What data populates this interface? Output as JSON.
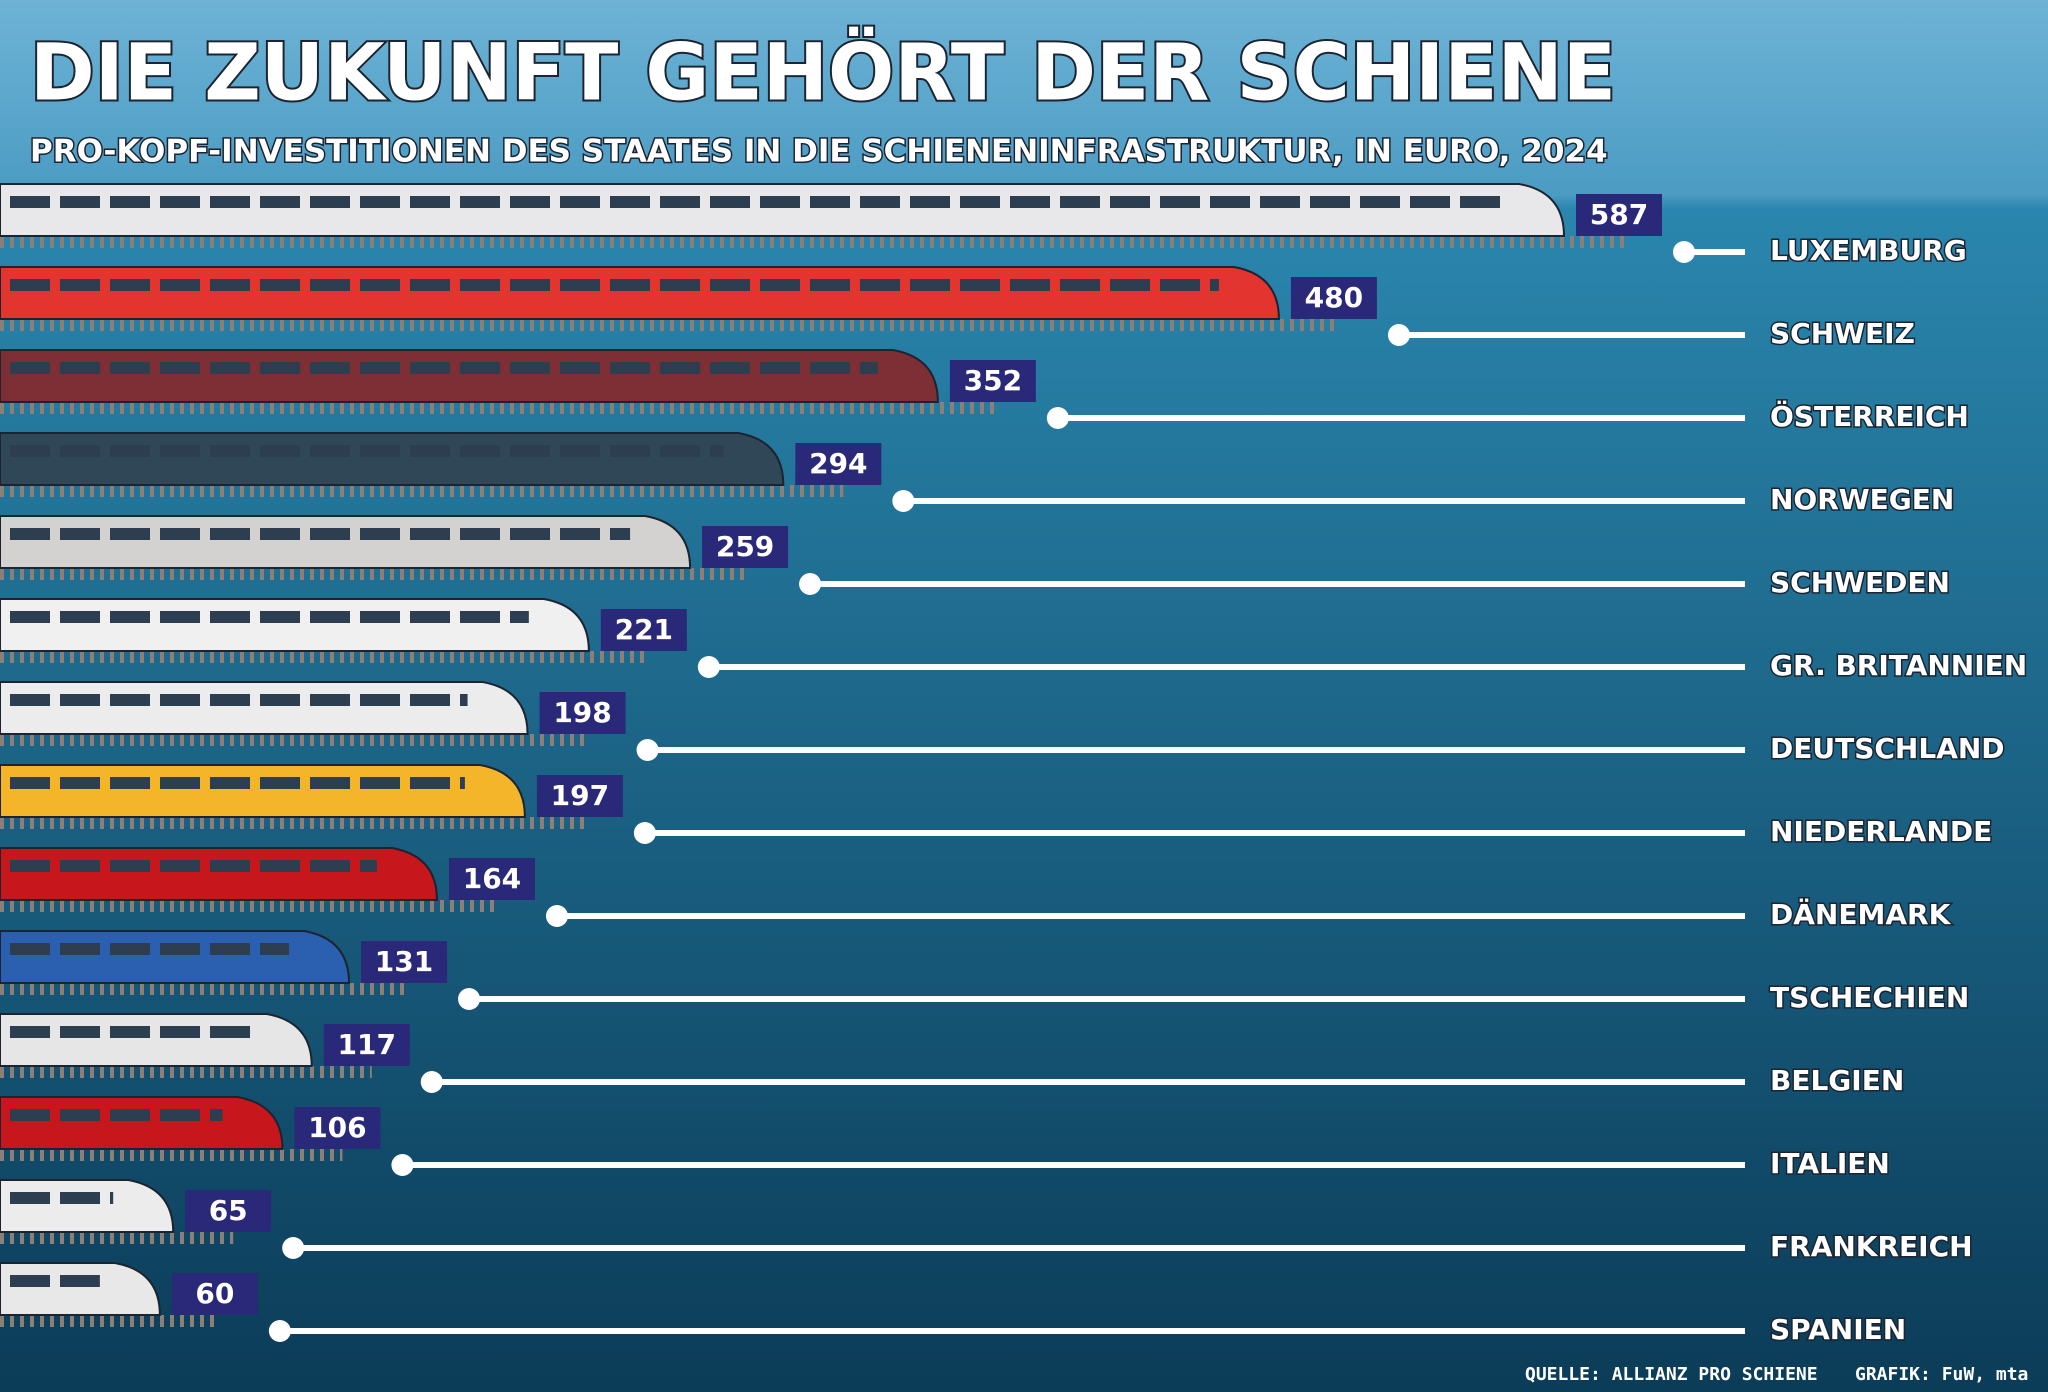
{
  "chart_data": {
    "type": "bar",
    "title": "DIE ZUKUNFT GEHÖRT DER SCHIENE",
    "subtitle": "PRO-KOPF-INVESTITIONEN DES STAATES IN DIE SCHIENENINFRASTRUKTUR, IN EURO, 2024",
    "categories": [
      "LUXEMBURG",
      "SCHWEIZ",
      "ÖSTERREICH",
      "NORWEGEN",
      "SCHWEDEN",
      "GR. BRITANNIEN",
      "DEUTSCHLAND",
      "NIEDERLANDE",
      "DÄNEMARK",
      "TSCHECHIEN",
      "BELGIEN",
      "ITALIEN",
      "FRANKREICH",
      "SPANIEN"
    ],
    "values": [
      587,
      480,
      352,
      294,
      259,
      221,
      198,
      197,
      164,
      131,
      117,
      106,
      65,
      60
    ],
    "colors": [
      "#e8e8ea",
      "#e3342f",
      "#7e2f36",
      "#2f4756",
      "#d4d2d0",
      "#f0f0f0",
      "#ececec",
      "#f5b52a",
      "#c8161d",
      "#2b5fb0",
      "#e6e6e6",
      "#c8161d",
      "#ececec",
      "#e8e8e8"
    ],
    "source": "QUELLE: ALLIANZ PRO SCHIENE",
    "credit": "GRAFIK: FuW, mta"
  }
}
